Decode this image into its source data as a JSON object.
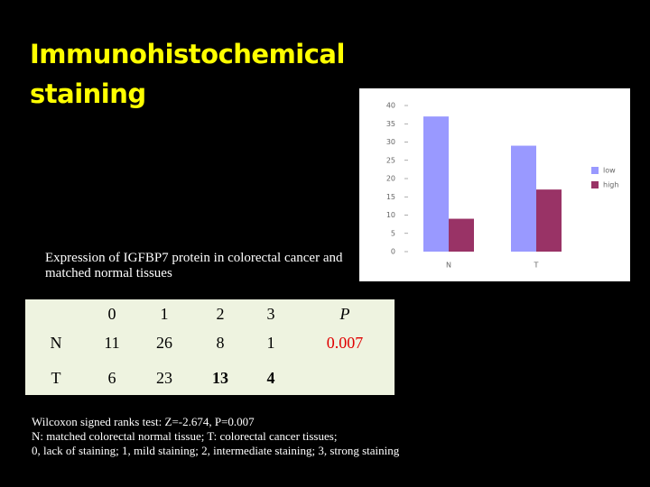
{
  "title": "Immunohistochemical staining",
  "chart_data": {
    "type": "bar",
    "categories": [
      "N",
      "T"
    ],
    "series": [
      {
        "name": "low",
        "color": "#9999ff",
        "values": [
          37,
          29
        ]
      },
      {
        "name": "high",
        "color": "#993366",
        "values": [
          9,
          17
        ]
      }
    ],
    "ylim": [
      0,
      40
    ],
    "yticks": [
      0,
      5,
      10,
      15,
      20,
      25,
      30,
      35,
      40
    ],
    "legend": "right"
  },
  "caption": "Expression of IGFBP7 protein in colorectal cancer and matched normal tissues",
  "table": {
    "columns": [
      "0",
      "1",
      "2",
      "3",
      "P"
    ],
    "rows": [
      {
        "label": "N",
        "values": [
          "11",
          "26",
          "8",
          "1"
        ],
        "p": "0.007"
      },
      {
        "label": "T",
        "values": [
          "6",
          "23",
          "13",
          "4"
        ]
      }
    ]
  },
  "notes": [
    "Wilcoxon signed ranks test: Z=-2.674, P=0.007",
    "N: matched colorectal normal tissue; T: colorectal cancer tissues;",
    "0, lack of staining; 1, mild staining; 2, intermediate staining; 3, strong staining"
  ]
}
